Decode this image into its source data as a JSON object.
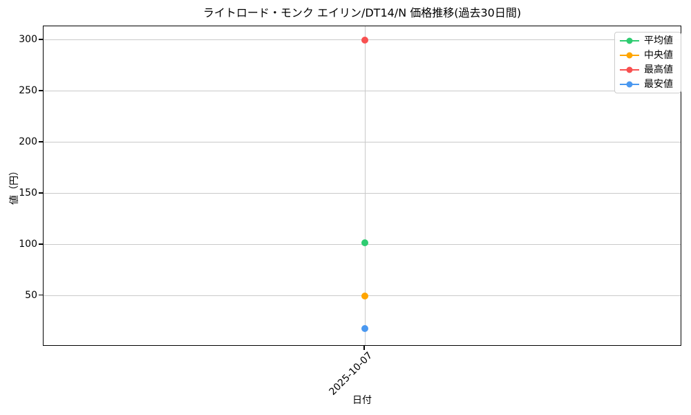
{
  "chart_data": {
    "type": "line",
    "title": "ライトロード・モンク エイリン/DT14/N 価格推移(過去30日間)",
    "xlabel": "日付",
    "ylabel": "値（円）",
    "x": [
      "2025-10-07"
    ],
    "series": [
      {
        "key": "average",
        "name": "平均値",
        "color": "#2ecc71",
        "values": [
          102
        ]
      },
      {
        "key": "median",
        "name": "中央値",
        "color": "#ffa500",
        "values": [
          50
        ]
      },
      {
        "key": "max",
        "name": "最高値",
        "color": "#f85050",
        "values": [
          300
        ]
      },
      {
        "key": "min",
        "name": "最安値",
        "color": "#4a98f0",
        "values": [
          18
        ]
      }
    ],
    "yticks": [
      50,
      100,
      150,
      200,
      250,
      300
    ],
    "ylim": [
      0.4,
      313.5
    ],
    "grid": true,
    "legend_position": "upper right",
    "background": "#ffffff",
    "grid_color": "#c9c9c9"
  }
}
